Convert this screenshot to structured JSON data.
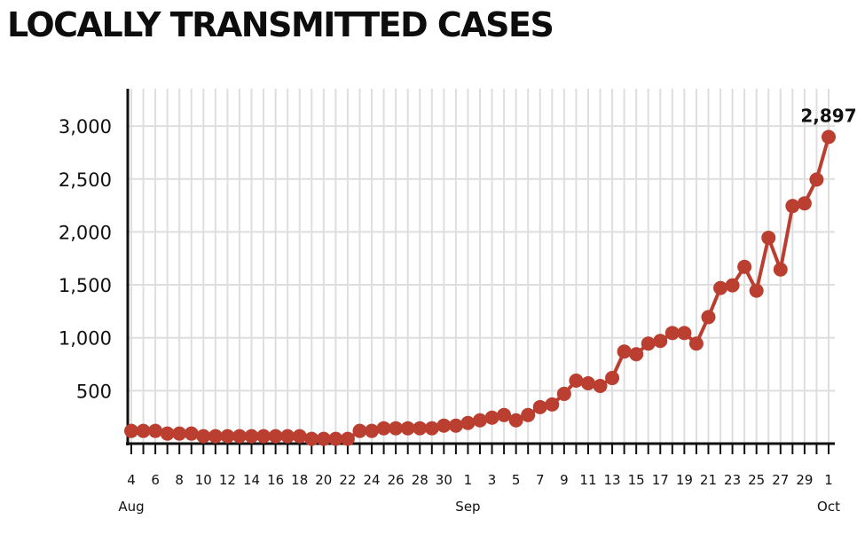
{
  "header": {
    "title": "LOCALLY TRANSMITTED CASES"
  },
  "chart_data": {
    "type": "line",
    "title": "LOCALLY TRANSMITTED CASES",
    "xlabel": "",
    "ylabel": "",
    "ylim": [
      0,
      3300
    ],
    "y_ticks": [
      500,
      1000,
      1500,
      2000,
      2500,
      3000
    ],
    "y_tick_labels": [
      "500",
      "1,000",
      "1,500",
      "2,000",
      "2,500",
      "3,000"
    ],
    "x_tick_labels": [
      "4",
      "6",
      "8",
      "10",
      "12",
      "14",
      "16",
      "18",
      "20",
      "22",
      "24",
      "26",
      "28",
      "30",
      "1",
      "3",
      "5",
      "7",
      "9",
      "11",
      "13",
      "15",
      "17",
      "19",
      "21",
      "23",
      "25",
      "27",
      "29",
      "1"
    ],
    "month_labels": [
      "Aug",
      "Sep",
      "Oct"
    ],
    "grid": true,
    "series": [
      {
        "x": [
          "2021-08-04",
          "2021-08-05",
          "2021-08-06",
          "2021-08-07",
          "2021-08-08",
          "2021-08-09",
          "2021-08-10",
          "2021-08-11",
          "2021-08-12",
          "2021-08-13",
          "2021-08-14",
          "2021-08-15",
          "2021-08-16",
          "2021-08-17",
          "2021-08-18",
          "2021-08-19",
          "2021-08-20",
          "2021-08-21",
          "2021-08-22",
          "2021-08-23",
          "2021-08-24",
          "2021-08-25",
          "2021-08-26",
          "2021-08-27",
          "2021-08-28",
          "2021-08-29",
          "2021-08-30",
          "2021-08-31",
          "2021-09-01",
          "2021-09-02",
          "2021-09-03",
          "2021-09-04",
          "2021-09-05",
          "2021-09-06",
          "2021-09-07",
          "2021-09-08",
          "2021-09-09",
          "2021-09-10",
          "2021-09-11",
          "2021-09-12",
          "2021-09-13",
          "2021-09-14",
          "2021-09-15",
          "2021-09-16",
          "2021-09-17",
          "2021-09-18",
          "2021-09-19",
          "2021-09-20",
          "2021-09-21",
          "2021-09-22",
          "2021-09-23",
          "2021-09-24",
          "2021-09-25",
          "2021-09-26",
          "2021-09-27",
          "2021-09-28",
          "2021-09-29",
          "2021-09-30",
          "2021-10-01"
        ],
        "values": [
          120,
          120,
          120,
          95,
          95,
          95,
          70,
          70,
          70,
          70,
          70,
          70,
          70,
          70,
          70,
          45,
          45,
          45,
          45,
          120,
          120,
          145,
          145,
          145,
          145,
          145,
          170,
          170,
          195,
          220,
          245,
          270,
          220,
          270,
          345,
          370,
          470,
          595,
          570,
          545,
          620,
          870,
          845,
          945,
          970,
          1045,
          1045,
          945,
          1195,
          1470,
          1495,
          1670,
          1445,
          1945,
          1645,
          2245,
          2270,
          2495,
          2897
        ]
      }
    ],
    "annotations": [
      "2,897"
    ],
    "colors": {
      "line": "#bb3f30",
      "grid": "#dedede",
      "axis": "#111111"
    }
  }
}
